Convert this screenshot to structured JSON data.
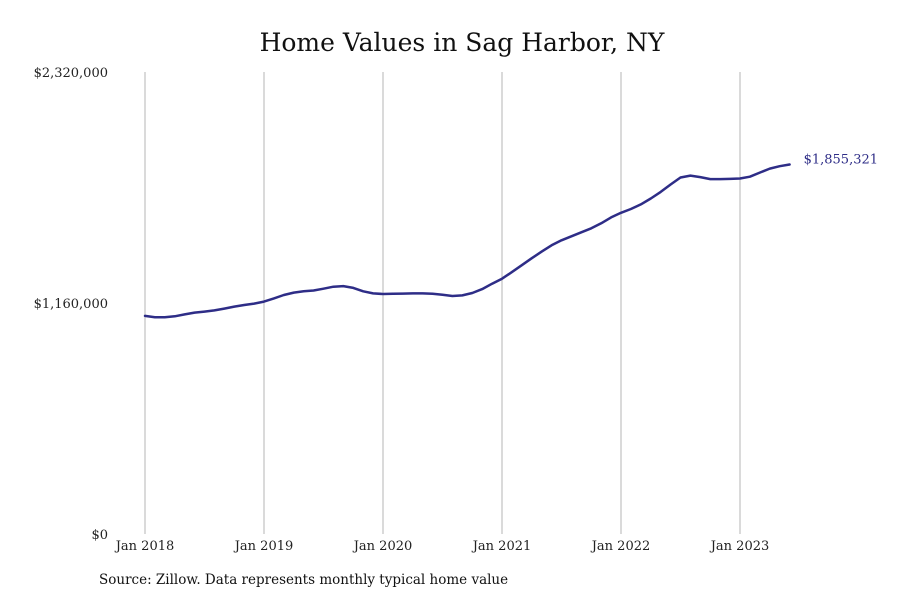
{
  "chart_data": {
    "type": "line",
    "title": "Home Values in Sag Harbor, NY",
    "xlabel": "",
    "ylabel": "",
    "x_ticks": [
      "Jan 2018",
      "Jan 2019",
      "Jan 2020",
      "Jan 2021",
      "Jan 2022",
      "Jan 2023"
    ],
    "y_ticks": [
      "$0",
      "$1,160,000",
      "$2,320,000"
    ],
    "ylim": [
      0,
      2320000
    ],
    "xlim": [
      "2018-01",
      "2023-12"
    ],
    "grid": {
      "vertical": true,
      "horizontal": false
    },
    "line_color": "#2e2d87",
    "grid_color": "#b5b5b5",
    "end_label": "$1,855,321",
    "series": [
      {
        "x": [
          "2018-01",
          "2018-02",
          "2018-03",
          "2018-04",
          "2018-05",
          "2018-06",
          "2018-07",
          "2018-08",
          "2018-09",
          "2018-10",
          "2018-11",
          "2018-12",
          "2019-01",
          "2019-02",
          "2019-03",
          "2019-04",
          "2019-05",
          "2019-06",
          "2019-07",
          "2019-08",
          "2019-09",
          "2019-10",
          "2019-11",
          "2019-12",
          "2020-01",
          "2020-02",
          "2020-03",
          "2020-04",
          "2020-05",
          "2020-06",
          "2020-07",
          "2020-08",
          "2020-09",
          "2020-10",
          "2020-11",
          "2020-12",
          "2021-01",
          "2021-02",
          "2021-03",
          "2021-04",
          "2021-05",
          "2021-06",
          "2021-07",
          "2021-08",
          "2021-09",
          "2021-10",
          "2021-11",
          "2021-12",
          "2022-01",
          "2022-02",
          "2022-03",
          "2022-04",
          "2022-05",
          "2022-06",
          "2022-07",
          "2022-08",
          "2022-09",
          "2022-10",
          "2022-11",
          "2022-12",
          "2023-01",
          "2023-02",
          "2023-03",
          "2023-04",
          "2023-05",
          "2023-06"
        ],
        "values": [
          1095000,
          1088000,
          1088000,
          1093000,
          1103000,
          1112000,
          1117000,
          1123000,
          1132000,
          1142000,
          1150000,
          1157000,
          1167000,
          1183000,
          1200000,
          1212000,
          1219000,
          1223000,
          1232000,
          1242000,
          1245000,
          1236000,
          1219000,
          1208000,
          1205000,
          1206000,
          1207000,
          1208000,
          1208000,
          1206000,
          1201000,
          1195000,
          1198000,
          1210000,
          1230000,
          1257000,
          1282000,
          1315000,
          1350000,
          1385000,
          1418000,
          1450000,
          1475000,
          1495000,
          1515000,
          1535000,
          1560000,
          1590000,
          1613000,
          1632000,
          1655000,
          1685000,
          1718000,
          1755000,
          1790000,
          1800000,
          1792000,
          1782000,
          1782000,
          1783000,
          1785000,
          1794000,
          1815000,
          1835000,
          1847000,
          1855321
        ]
      }
    ]
  },
  "footer": {
    "source": "Source: Zillow. Data represents monthly typical home value"
  }
}
